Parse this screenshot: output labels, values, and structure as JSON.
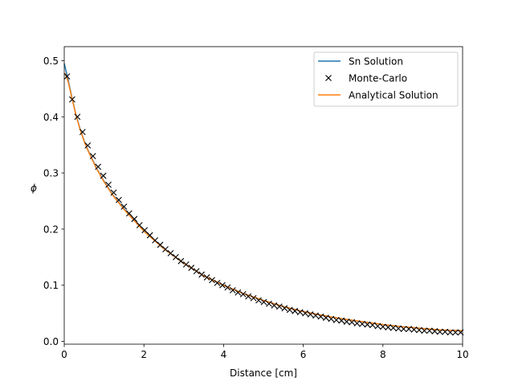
{
  "chart_data": {
    "type": "line",
    "xlabel": "Distance [cm]",
    "ylabel": "ϕ",
    "xlim": [
      0,
      10
    ],
    "ylim": [
      -0.005,
      0.525
    ],
    "xticks": [
      0,
      2,
      4,
      6,
      8,
      10
    ],
    "yticks": [
      0.0,
      0.1,
      0.2,
      0.3,
      0.4,
      0.5
    ],
    "xtick_labels": [
      "0",
      "2",
      "4",
      "6",
      "8",
      "10"
    ],
    "ytick_labels": [
      "0.0",
      "0.1",
      "0.2",
      "0.3",
      "0.4",
      "0.5"
    ],
    "grid": false,
    "legend_position": "top-right",
    "colors": {
      "sn": "#1f77b4",
      "mc": "#000000",
      "analytical": "#ff7f0e"
    },
    "series": [
      {
        "name": "Sn Solution",
        "style": "line",
        "x": [
          0,
          0.1,
          0.2,
          0.3,
          0.4,
          0.5,
          0.6,
          0.8,
          1.0,
          1.2,
          1.5,
          2.0,
          2.5,
          3.0,
          3.5,
          4.0,
          4.5,
          5.0,
          5.5,
          6.0,
          6.5,
          7.0,
          7.5,
          8.0,
          8.5,
          9.0,
          9.5,
          10.0
        ],
        "y": [
          0.495,
          0.465,
          0.432,
          0.402,
          0.378,
          0.357,
          0.34,
          0.31,
          0.285,
          0.263,
          0.236,
          0.197,
          0.165,
          0.139,
          0.117,
          0.1,
          0.085,
          0.073,
          0.062,
          0.053,
          0.046,
          0.04,
          0.035,
          0.03,
          0.026,
          0.023,
          0.02,
          0.019
        ]
      },
      {
        "name": "Monte-Carlo",
        "style": "marker-x",
        "x": [
          0.07,
          0.2,
          0.33,
          0.46,
          0.59,
          0.72,
          0.85,
          0.98,
          1.11,
          1.24,
          1.37,
          1.5,
          1.63,
          1.76,
          1.89,
          2.02,
          2.15,
          2.28,
          2.41,
          2.54,
          2.67,
          2.8,
          2.93,
          3.06,
          3.19,
          3.32,
          3.45,
          3.58,
          3.71,
          3.84,
          3.97,
          4.1,
          4.23,
          4.36,
          4.49,
          4.62,
          4.75,
          4.88,
          5.01,
          5.14,
          5.27,
          5.4,
          5.53,
          5.66,
          5.79,
          5.92,
          6.05,
          6.18,
          6.31,
          6.44,
          6.57,
          6.7,
          6.83,
          6.96,
          7.09,
          7.22,
          7.35,
          7.48,
          7.61,
          7.74,
          7.87,
          8.0,
          8.13,
          8.26,
          8.39,
          8.52,
          8.65,
          8.78,
          8.91,
          9.04,
          9.17,
          9.3,
          9.43,
          9.56,
          9.69,
          9.82,
          9.95
        ],
        "y": [
          0.472,
          0.431,
          0.4,
          0.373,
          0.349,
          0.33,
          0.311,
          0.295,
          0.279,
          0.265,
          0.252,
          0.24,
          0.228,
          0.218,
          0.207,
          0.198,
          0.189,
          0.18,
          0.172,
          0.164,
          0.157,
          0.15,
          0.143,
          0.137,
          0.131,
          0.125,
          0.119,
          0.114,
          0.109,
          0.104,
          0.1,
          0.096,
          0.091,
          0.087,
          0.084,
          0.08,
          0.077,
          0.073,
          0.07,
          0.067,
          0.064,
          0.062,
          0.059,
          0.056,
          0.054,
          0.052,
          0.05,
          0.048,
          0.046,
          0.044,
          0.042,
          0.04,
          0.038,
          0.037,
          0.035,
          0.034,
          0.032,
          0.031,
          0.03,
          0.029,
          0.027,
          0.026,
          0.025,
          0.024,
          0.023,
          0.022,
          0.022,
          0.021,
          0.02,
          0.019,
          0.019,
          0.018,
          0.017,
          0.017,
          0.016,
          0.016,
          0.016
        ]
      },
      {
        "name": "Analytical Solution",
        "style": "line",
        "x": [
          0.02,
          0.1,
          0.2,
          0.3,
          0.4,
          0.5,
          0.6,
          0.8,
          1.0,
          1.2,
          1.5,
          2.0,
          2.5,
          3.0,
          3.5,
          4.0,
          4.5,
          5.0,
          5.5,
          6.0,
          6.5,
          7.0,
          7.5,
          8.0,
          8.5,
          9.0,
          9.5,
          10.0
        ],
        "y": [
          0.478,
          0.462,
          0.431,
          0.401,
          0.377,
          0.356,
          0.339,
          0.309,
          0.284,
          0.262,
          0.235,
          0.196,
          0.165,
          0.139,
          0.117,
          0.1,
          0.085,
          0.073,
          0.062,
          0.053,
          0.046,
          0.04,
          0.035,
          0.03,
          0.026,
          0.023,
          0.02,
          0.019
        ]
      }
    ]
  }
}
